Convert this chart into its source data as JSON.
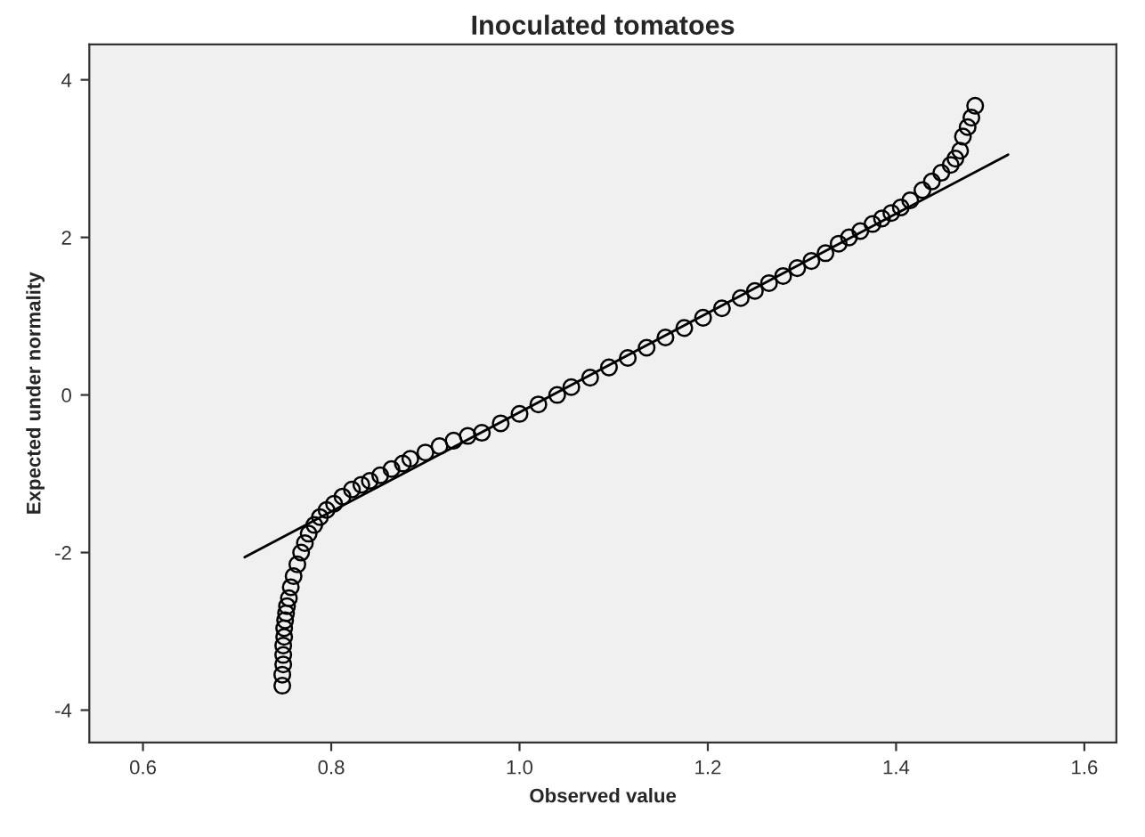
{
  "chart_data": {
    "type": "scatter",
    "title": "Inoculated tomatoes",
    "xlabel": "Observed value",
    "ylabel": "Expected under normality",
    "xlim": [
      0.543,
      1.634
    ],
    "ylim": [
      -4.41,
      4.45
    ],
    "xticks": [
      0.6,
      0.8,
      {
        "value": 1,
        "label": "1.0"
      },
      1.2,
      1.4,
      1.6
    ],
    "yticks": [
      -4,
      -2,
      0,
      2,
      4
    ],
    "grid": false,
    "marker": "circle",
    "series": [
      {
        "color": "#000000",
        "x": [
          0.748,
          0.748,
          0.749,
          0.749,
          0.749,
          0.75,
          0.75,
          0.751,
          0.752,
          0.753,
          0.755,
          0.757,
          0.76,
          0.764,
          0.768,
          0.772,
          0.776,
          0.782,
          0.788,
          0.795,
          0.803,
          0.812,
          0.822,
          0.832,
          0.841,
          0.852,
          0.864,
          0.876,
          0.884,
          0.9,
          0.915,
          0.93,
          0.945,
          0.96,
          0.98,
          1.0,
          1.02,
          1.04,
          1.055,
          1.075,
          1.095,
          1.115,
          1.135,
          1.155,
          1.175,
          1.195,
          1.215,
          1.235,
          1.25,
          1.265,
          1.28,
          1.295,
          1.31,
          1.325,
          1.339,
          1.35,
          1.362,
          1.375,
          1.385,
          1.395,
          1.405,
          1.415,
          1.428,
          1.438,
          1.448,
          1.458,
          1.463,
          1.468,
          1.471,
          1.476,
          1.48,
          1.484
        ],
        "values": [
          -3.69,
          -3.55,
          -3.42,
          -3.3,
          -3.18,
          -3.07,
          -2.96,
          -2.86,
          -2.77,
          -2.68,
          -2.58,
          -2.44,
          -2.3,
          -2.15,
          -2.0,
          -1.88,
          -1.76,
          -1.65,
          -1.55,
          -1.46,
          -1.38,
          -1.29,
          -1.2,
          -1.14,
          -1.09,
          -1.02,
          -0.94,
          -0.87,
          -0.81,
          -0.73,
          -0.65,
          -0.58,
          -0.52,
          -0.48,
          -0.36,
          -0.24,
          -0.12,
          0.0,
          0.1,
          0.22,
          0.35,
          0.47,
          0.6,
          0.73,
          0.85,
          0.98,
          1.1,
          1.23,
          1.32,
          1.42,
          1.51,
          1.61,
          1.7,
          1.8,
          1.92,
          2.0,
          2.08,
          2.17,
          2.24,
          2.31,
          2.38,
          2.47,
          2.6,
          2.71,
          2.82,
          2.92,
          3.0,
          3.1,
          3.28,
          3.4,
          3.52,
          3.67
        ]
      },
      {
        "type": "line",
        "marker": "none",
        "color": "#000000",
        "x": [
          0.708,
          1.519
        ],
        "values": [
          -2.06,
          3.05
        ]
      }
    ]
  }
}
